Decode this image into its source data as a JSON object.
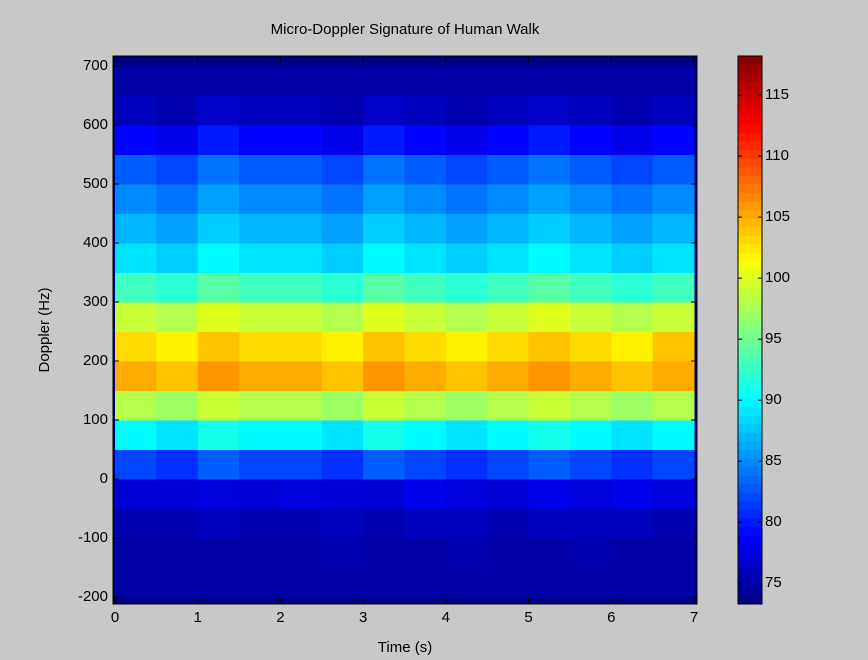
{
  "chart_data": {
    "type": "heatmap",
    "title": "Micro-Doppler Signature of Human Walk",
    "x_label": "Time (s)",
    "y_label": "Doppler (Hz)",
    "xlim": [
      0,
      7
    ],
    "ylim": [
      -212,
      717
    ],
    "xticks": [
      0,
      1,
      2,
      3,
      4,
      5,
      6,
      7
    ],
    "yticks": [
      -200,
      -100,
      0,
      100,
      200,
      300,
      400,
      500,
      600,
      700
    ],
    "colormap": "jet",
    "colorbar": {
      "lim": [
        73.3,
        118.2
      ],
      "ticks": [
        75,
        80,
        85,
        90,
        95,
        100,
        105,
        110,
        115
      ]
    },
    "x": [
      0.25,
      0.75,
      1.25,
      1.75,
      2.25,
      2.75,
      3.25,
      3.75,
      4.25,
      4.75,
      5.25,
      5.75,
      6.25,
      6.75
    ],
    "y": [
      -175,
      -125,
      -75,
      -25,
      25,
      75,
      125,
      175,
      225,
      275,
      325,
      375,
      425,
      475,
      525,
      575,
      625,
      675
    ],
    "z": [
      [
        75,
        75,
        75,
        75,
        75,
        75,
        75,
        75,
        75,
        75,
        75,
        75,
        75,
        75
      ],
      [
        75,
        75,
        75,
        75,
        75,
        75.5,
        75,
        75,
        75.5,
        75,
        75,
        75.5,
        75,
        75
      ],
      [
        75.5,
        75.5,
        76,
        75.5,
        75.5,
        76,
        75.5,
        76,
        76,
        75.5,
        76,
        76,
        76,
        75.5
      ],
      [
        77,
        77,
        77.5,
        77,
        77.5,
        77,
        77,
        78,
        77.5,
        77,
        78,
        77.5,
        78,
        77.5
      ],
      [
        82,
        81,
        83,
        82,
        82,
        81,
        83,
        82,
        81,
        82,
        83,
        82,
        81,
        82
      ],
      [
        90,
        89,
        91,
        90,
        90,
        89,
        91,
        90,
        89,
        90,
        91,
        90,
        89,
        90
      ],
      [
        98,
        97,
        99,
        98,
        98,
        97,
        99,
        98,
        97,
        98,
        99,
        98,
        97,
        98
      ],
      [
        105,
        104,
        106,
        105,
        105,
        104,
        106,
        105,
        104,
        105,
        106,
        105,
        104,
        105
      ],
      [
        103,
        102,
        104,
        103,
        103,
        102,
        104,
        103,
        102,
        103,
        104,
        103,
        102,
        104
      ],
      [
        99,
        98,
        100,
        99,
        99,
        98,
        100,
        99,
        98,
        99,
        100,
        99,
        98,
        99
      ],
      [
        93,
        92,
        94,
        93,
        93,
        92,
        94,
        93,
        92,
        93,
        94,
        93,
        92,
        93
      ],
      [
        89,
        88,
        90,
        89,
        89,
        88,
        90,
        89,
        88,
        89,
        90,
        89,
        88,
        89
      ],
      [
        87,
        86,
        88,
        87,
        87,
        86,
        88,
        87,
        86,
        87,
        88,
        87,
        86,
        87
      ],
      [
        85,
        84,
        86,
        85,
        85,
        84,
        86,
        85,
        84,
        85,
        86,
        85,
        84,
        85
      ],
      [
        83,
        82,
        84,
        83,
        83,
        82,
        84,
        83,
        82,
        83,
        84,
        83,
        82,
        83
      ],
      [
        79,
        78,
        80,
        79,
        79,
        78,
        80,
        79,
        78,
        79,
        80,
        79,
        78,
        79
      ],
      [
        76,
        75.5,
        76.5,
        76,
        76,
        75.5,
        76.5,
        76,
        75.5,
        76,
        76.5,
        76,
        75.5,
        76
      ],
      [
        75,
        75,
        75,
        75,
        75,
        75,
        75,
        75,
        75,
        75,
        75,
        75,
        75,
        75
      ]
    ]
  }
}
